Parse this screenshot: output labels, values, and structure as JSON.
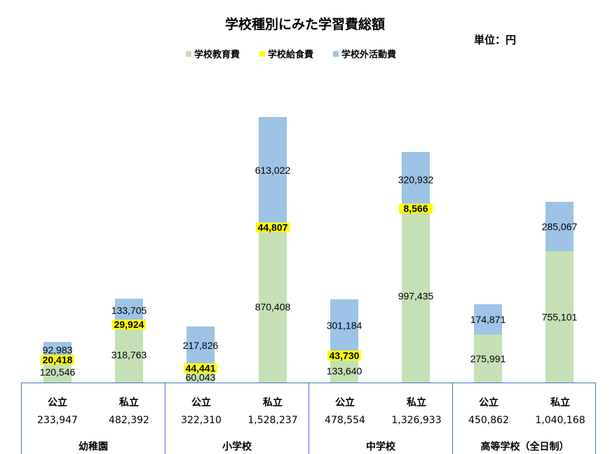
{
  "chart_data": {
    "type": "bar",
    "stacked": true,
    "title": "学校種別にみた学習費総額",
    "unit": "単位：円",
    "legend_position": "top",
    "grid": false,
    "series": [
      {
        "name": "学校教育費",
        "color": "#c5e0b4",
        "values": [
          120546,
          318763,
          60043,
          870408,
          133640,
          997435,
          275991,
          755101
        ]
      },
      {
        "name": "学校給食費",
        "color": "#ffff00",
        "values": [
          20418,
          29924,
          44441,
          44807,
          43730,
          8566,
          0,
          0
        ]
      },
      {
        "name": "学校外活動費",
        "color": "#9dc3e6",
        "values": [
          92983,
          133705,
          217826,
          613022,
          301184,
          320932,
          174871,
          285067
        ]
      }
    ],
    "groups": [
      {
        "label": "幼稚園",
        "columns": [
          {
            "type": "公立",
            "total": "233,947"
          },
          {
            "type": "私立",
            "total": "482,392"
          }
        ]
      },
      {
        "label": "小学校",
        "columns": [
          {
            "type": "公立",
            "total": "322,310"
          },
          {
            "type": "私立",
            "total": "1,528,237"
          }
        ]
      },
      {
        "label": "中学校",
        "columns": [
          {
            "type": "公立",
            "total": "478,554"
          },
          {
            "type": "私立",
            "total": "1,326,933"
          }
        ]
      },
      {
        "label": "高等学校（全日制）",
        "columns": [
          {
            "type": "公立",
            "total": "450,862"
          },
          {
            "type": "私立",
            "total": "1,040,168"
          }
        ]
      }
    ]
  }
}
